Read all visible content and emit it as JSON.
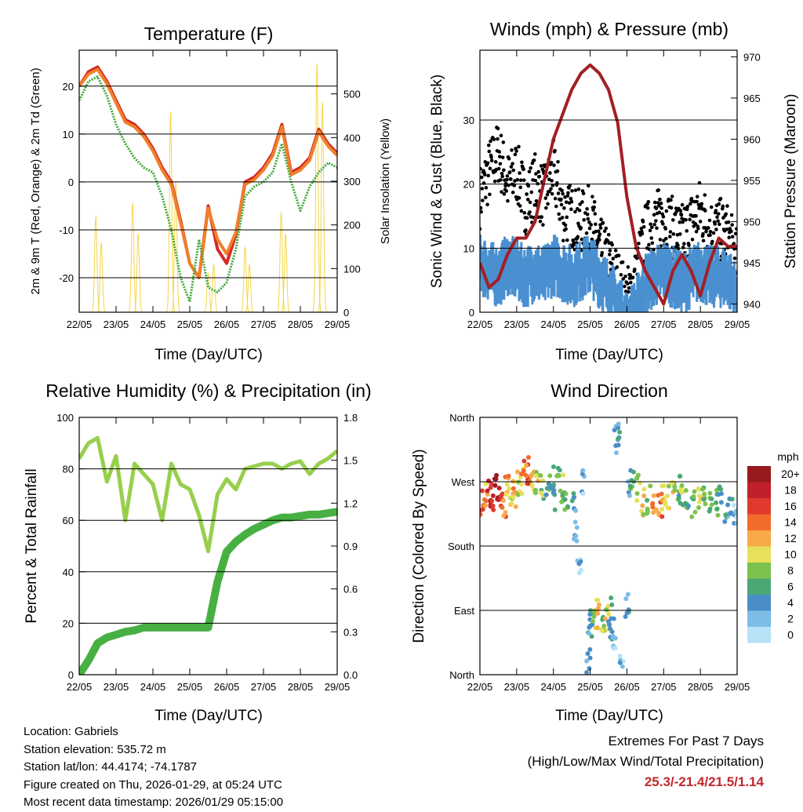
{
  "footer": {
    "location": "Location: Gabriels",
    "elevation": "Station elevation: 535.72 m",
    "latlon": "Station lat/lon: 44.4174; -74.1787",
    "created": "Figure created on Thu, 2026-01-29, at 05:24 UTC",
    "recent": "Most recent data timestamp: 2026/01/29 05:15:00",
    "extremes_title": "Extremes For Past 7 Days",
    "extremes_sub": "(High/Low/Max Wind/Total Precipitation)",
    "extremes_values": "25.3/-21.4/21.5/1.14"
  },
  "chart_data": [
    {
      "type": "line",
      "title": "Temperature (F)",
      "xlabel": "Time (Day/UTC)",
      "ylabel": "2m & 9m T (Red, Orange) & 2m Td (Green)",
      "ylabel_right": "Solar Insolation (Yellow)",
      "x_ticks": [
        "22/05",
        "23/05",
        "24/05",
        "25/05",
        "26/05",
        "27/05",
        "28/05",
        "29/05"
      ],
      "xlim": [
        0,
        7
      ],
      "ylim": [
        -27.2,
        27.5
      ],
      "y_ticks": [
        -20,
        -10,
        0,
        10,
        20
      ],
      "ylim_right": [
        0,
        600
      ],
      "y_ticks_right": [
        0,
        100,
        200,
        300,
        400,
        500
      ],
      "grid": true,
      "x_step_days": 0.25,
      "series": [
        {
          "name": "2m T",
          "color": "#d42a24",
          "values": [
            20,
            23,
            24,
            21,
            17,
            13,
            12,
            10,
            7,
            3,
            0,
            -8,
            -17,
            -20,
            -5,
            -14,
            -17,
            -11,
            0,
            1,
            3,
            6,
            12,
            2,
            3,
            5,
            11,
            8,
            6
          ]
        },
        {
          "name": "9m T",
          "color": "#f07f2a",
          "values": [
            20,
            22.5,
            23.5,
            20.5,
            16.5,
            12.5,
            11.5,
            9.5,
            6.5,
            2.5,
            -0.5,
            -8.5,
            -17,
            -20,
            -5.5,
            -12,
            -15,
            -10.5,
            -0.5,
            0.5,
            2.5,
            5.5,
            11.5,
            1.5,
            2.5,
            4.5,
            10.5,
            7.5,
            5.5
          ]
        },
        {
          "name": "2m Td",
          "color": "#44a83a",
          "values": [
            17,
            21,
            22,
            18,
            12,
            8,
            5,
            3,
            2,
            -3,
            -10,
            -20,
            -25,
            -12,
            -22,
            -23,
            -21,
            -14,
            -3,
            -1,
            0,
            2,
            8,
            0,
            -6,
            -1,
            2,
            4,
            3
          ]
        }
      ],
      "solar": {
        "name": "Solar Insolation",
        "color": "#f5d547",
        "peaks": [
          [
            0.45,
            220
          ],
          [
            0.6,
            160
          ],
          [
            1.45,
            250
          ],
          [
            1.6,
            180
          ],
          [
            2.48,
            460
          ],
          [
            2.62,
            300
          ],
          [
            3.5,
            90
          ],
          [
            3.65,
            110
          ],
          [
            4.5,
            150
          ],
          [
            4.62,
            110
          ],
          [
            5.48,
            230
          ],
          [
            5.6,
            180
          ],
          [
            6.45,
            570
          ],
          [
            6.6,
            480
          ]
        ]
      }
    },
    {
      "type": "line",
      "title": "Winds (mph) & Pressure (mb)",
      "xlabel": "Time (Day/UTC)",
      "ylabel": "Sonic Wind & Gust (Blue, Black)",
      "ylabel_right": "Station Pressure (Maroon)",
      "x_ticks": [
        "22/05",
        "23/05",
        "24/05",
        "25/05",
        "26/05",
        "27/05",
        "28/05",
        "29/05"
      ],
      "xlim": [
        0,
        7
      ],
      "ylim": [
        0,
        40.9
      ],
      "y_ticks": [
        0,
        10,
        20,
        30
      ],
      "ylim_right": [
        939.0,
        970.8
      ],
      "y_ticks_right": [
        940,
        945,
        950,
        955,
        960,
        965,
        970
      ],
      "grid": true,
      "x_step_days": 0.25,
      "series": [
        {
          "name": "Gust",
          "color": "#000000",
          "values": [
            18,
            22,
            25,
            20,
            22,
            17,
            20,
            18,
            22,
            16,
            15,
            14,
            15,
            10,
            8,
            5,
            2,
            6,
            12,
            14,
            15,
            13,
            12,
            14,
            16,
            13,
            13,
            12,
            8
          ]
        },
        {
          "name": "Wind",
          "color": "#4a90d0",
          "values": [
            10,
            9,
            8,
            10,
            9,
            8,
            9,
            8,
            10,
            9,
            8,
            9,
            10,
            8,
            6,
            4,
            1,
            3,
            7,
            8,
            9,
            8,
            7,
            8,
            9,
            8,
            8,
            8,
            5
          ]
        },
        {
          "name": "Pressure",
          "color": "#a31f24",
          "axis": "right",
          "values": [
            945,
            942,
            943,
            946,
            948,
            948,
            950,
            955,
            960,
            963,
            966,
            968,
            969,
            968,
            966,
            962,
            953,
            947,
            944,
            942,
            940,
            944,
            946,
            944,
            941,
            945,
            948,
            947,
            947
          ]
        }
      ]
    },
    {
      "type": "line",
      "title": "Relative Humidity (%) & Precipitation (in)",
      "xlabel": "Time (Day/UTC)",
      "ylabel": "Percent & Total Rainfall",
      "x_ticks": [
        "22/05",
        "23/05",
        "24/05",
        "25/05",
        "26/05",
        "27/05",
        "28/05",
        "29/05"
      ],
      "xlim": [
        0,
        7
      ],
      "ylim": [
        0,
        100
      ],
      "y_ticks": [
        0,
        20,
        40,
        60,
        80,
        100
      ],
      "ylim_right": [
        0,
        1.8
      ],
      "y_ticks_right": [
        "0.0",
        "0.3",
        "0.6",
        "0.9",
        "1.2",
        "1.5",
        "1.8"
      ],
      "grid": true,
      "x_step_days": 0.25,
      "series": [
        {
          "name": "Relative Humidity",
          "color": "#97cf4d",
          "values": [
            84,
            90,
            92,
            75,
            85,
            60,
            82,
            78,
            74,
            60,
            82,
            74,
            72,
            62,
            48,
            70,
            76,
            72,
            80,
            81,
            82,
            82,
            80,
            82,
            83,
            78,
            82,
            84,
            87
          ]
        },
        {
          "name": "Total Precipitation",
          "color": "#48b043",
          "axis": "right",
          "values": [
            0,
            0.1,
            0.22,
            0.26,
            0.28,
            0.3,
            0.31,
            0.33,
            0.33,
            0.33,
            0.33,
            0.33,
            0.33,
            0.33,
            0.33,
            0.65,
            0.86,
            0.93,
            0.98,
            1.02,
            1.05,
            1.08,
            1.1,
            1.1,
            1.11,
            1.12,
            1.12,
            1.13,
            1.14
          ]
        }
      ]
    },
    {
      "type": "scatter",
      "title": "Wind Direction",
      "xlabel": "Time (Day/UTC)",
      "ylabel": "Direction (Colored By Speed)",
      "x_ticks": [
        "22/05",
        "23/05",
        "24/05",
        "25/05",
        "26/05",
        "27/05",
        "28/05",
        "29/05"
      ],
      "xlim": [
        0,
        7
      ],
      "ylim": [
        0,
        360
      ],
      "y_ticks": [
        [
          0,
          "North"
        ],
        [
          90,
          "East"
        ],
        [
          180,
          "South"
        ],
        [
          270,
          "West"
        ],
        [
          360,
          "North"
        ]
      ],
      "grid": true,
      "legend": {
        "title": "mph",
        "placement": "right",
        "levels": [
          {
            "label": "20+",
            "color": "#961a1e"
          },
          {
            "label": "18",
            "color": "#c0202a"
          },
          {
            "label": "16",
            "color": "#e03a2e"
          },
          {
            "label": "14",
            "color": "#f26b2a"
          },
          {
            "label": "12",
            "color": "#f8aa48"
          },
          {
            "label": "10",
            "color": "#e6e05a"
          },
          {
            "label": "8",
            "color": "#7dc24e"
          },
          {
            "label": "6",
            "color": "#4aa874"
          },
          {
            "label": "4",
            "color": "#4a8ec9"
          },
          {
            "label": "2",
            "color": "#7cbde6"
          },
          {
            "label": "0",
            "color": "#b8e2f8"
          }
        ]
      },
      "points": [
        [
          0.05,
          240,
          14
        ],
        [
          0.15,
          248,
          12
        ],
        [
          0.25,
          255,
          18
        ],
        [
          0.35,
          250,
          16
        ],
        [
          0.45,
          262,
          20
        ],
        [
          0.55,
          245,
          16
        ],
        [
          0.65,
          240,
          14
        ],
        [
          0.75,
          258,
          12
        ],
        [
          0.85,
          250,
          10
        ],
        [
          0.95,
          255,
          12
        ],
        [
          1.05,
          265,
          10
        ],
        [
          1.15,
          270,
          12
        ],
        [
          1.25,
          280,
          14
        ],
        [
          1.35,
          285,
          16
        ],
        [
          1.45,
          275,
          12
        ],
        [
          1.55,
          270,
          10
        ],
        [
          1.7,
          265,
          8
        ],
        [
          1.85,
          260,
          6
        ],
        [
          1.95,
          275,
          4
        ],
        [
          2.05,
          250,
          4
        ],
        [
          2.15,
          270,
          6
        ],
        [
          2.25,
          260,
          8
        ],
        [
          2.35,
          240,
          6
        ],
        [
          2.55,
          235,
          4
        ],
        [
          2.6,
          200,
          2
        ],
        [
          2.7,
          150,
          2
        ],
        [
          2.8,
          270,
          2
        ],
        [
          2.95,
          20,
          2
        ],
        [
          3.0,
          60,
          4
        ],
        [
          3.05,
          70,
          6
        ],
        [
          3.15,
          85,
          8
        ],
        [
          3.25,
          80,
          10
        ],
        [
          3.35,
          75,
          8
        ],
        [
          3.45,
          80,
          10
        ],
        [
          3.55,
          90,
          4
        ],
        [
          3.6,
          60,
          4
        ],
        [
          3.65,
          40,
          2
        ],
        [
          3.7,
          330,
          2
        ],
        [
          3.75,
          340,
          4
        ],
        [
          3.85,
          10,
          2
        ],
        [
          4.0,
          100,
          4
        ],
        [
          4.05,
          270,
          4
        ],
        [
          4.15,
          275,
          6
        ],
        [
          4.3,
          260,
          8
        ],
        [
          4.45,
          240,
          10
        ],
        [
          4.6,
          245,
          8
        ],
        [
          4.75,
          235,
          12
        ],
        [
          4.9,
          240,
          14
        ],
        [
          5.0,
          250,
          12
        ],
        [
          5.1,
          245,
          10
        ],
        [
          5.25,
          255,
          10
        ],
        [
          5.4,
          260,
          6
        ],
        [
          5.5,
          245,
          8
        ],
        [
          5.65,
          250,
          6
        ],
        [
          5.8,
          240,
          8
        ],
        [
          6.0,
          250,
          10
        ],
        [
          6.1,
          245,
          8
        ],
        [
          6.3,
          235,
          8
        ],
        [
          6.45,
          240,
          6
        ],
        [
          6.55,
          255,
          6
        ],
        [
          6.7,
          230,
          4
        ],
        [
          6.85,
          235,
          4
        ],
        [
          6.95,
          225,
          2
        ]
      ]
    }
  ]
}
